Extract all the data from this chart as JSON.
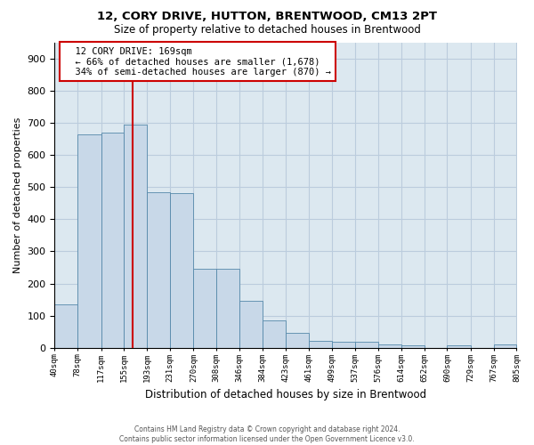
{
  "title": "12, CORY DRIVE, HUTTON, BRENTWOOD, CM13 2PT",
  "subtitle": "Size of property relative to detached houses in Brentwood",
  "xlabel": "Distribution of detached houses by size in Brentwood",
  "ylabel": "Number of detached properties",
  "footer_line1": "Contains HM Land Registry data © Crown copyright and database right 2024.",
  "footer_line2": "Contains public sector information licensed under the Open Government Licence v3.0.",
  "annotation_line1": "12 CORY DRIVE: 169sqm",
  "annotation_line2": "← 66% of detached houses are smaller (1,678)",
  "annotation_line3": "34% of semi-detached houses are larger (870) →",
  "property_size": 169,
  "bar_color": "#c8d8e8",
  "bar_edge_color": "#5588aa",
  "vline_color": "#cc0000",
  "annotation_box_color": "#cc0000",
  "background_color": "#ffffff",
  "plot_bg_color": "#dce8f0",
  "grid_color": "#bbccdd",
  "bins": [
    40,
    78,
    117,
    155,
    193,
    231,
    270,
    308,
    346,
    384,
    423,
    461,
    499,
    537,
    576,
    614,
    652,
    690,
    729,
    767,
    805
  ],
  "counts": [
    135,
    665,
    668,
    693,
    483,
    480,
    247,
    247,
    147,
    85,
    48,
    22,
    18,
    18,
    11,
    8,
    0,
    8,
    0,
    10
  ],
  "ylim": [
    0,
    950
  ],
  "yticks": [
    0,
    100,
    200,
    300,
    400,
    500,
    600,
    700,
    800,
    900
  ]
}
